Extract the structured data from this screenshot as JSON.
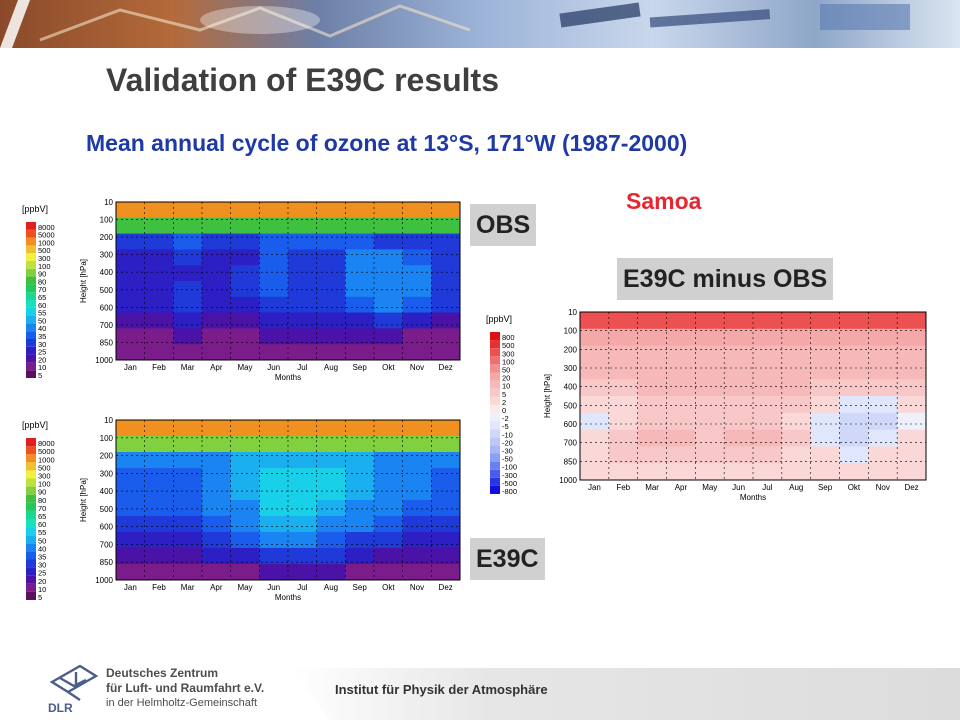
{
  "slide": {
    "title": "Validation of E39C results",
    "subtitle": "Mean annual cycle of ozone at 13°S, 171°W (1987-2000)",
    "station": "Samoa",
    "institute": "Institut für Physik der Atmosphäre",
    "logo": {
      "abbr": "DLR",
      "line1": "Deutsches Zentrum",
      "line2": "für Luft- und Raumfahrt e.V.",
      "line3": "in der Helmholtz-Gemeinschaft"
    }
  },
  "chart_data": [
    {
      "type": "heatmap",
      "panel_label": "OBS",
      "unit_label": "[ppbV]",
      "xlabel": "Months",
      "ylabel": "Height [hPa]",
      "x": [
        "Jan",
        "Feb",
        "Mar",
        "Apr",
        "May",
        "Jun",
        "Jul",
        "Aug",
        "Sep",
        "Okt",
        "Nov",
        "Dez"
      ],
      "y_ticks": [
        10,
        100,
        200,
        300,
        400,
        500,
        600,
        700,
        850,
        1000
      ],
      "levels": [
        5,
        10,
        20,
        25,
        30,
        35,
        40,
        50,
        55,
        60,
        65,
        70,
        80,
        90,
        100,
        300,
        500,
        1000,
        5000,
        8000
      ],
      "colors": [
        "#5a0e5e",
        "#7a1d8a",
        "#4a12a6",
        "#2c1fc4",
        "#1f3ad8",
        "#1a5cec",
        "#1a85f2",
        "#1ab0f0",
        "#18d0e8",
        "#1ae0c0",
        "#1ad890",
        "#20c860",
        "#40c040",
        "#80d040",
        "#c0e040",
        "#f0f040",
        "#f0c030",
        "#f09020",
        "#f05020",
        "#e02020"
      ],
      "z_approx": [
        [
          1000,
          1000,
          1000,
          1000,
          1000,
          1000,
          1000,
          1000,
          1000,
          1000,
          1000,
          1000
        ],
        [
          80,
          80,
          80,
          80,
          80,
          80,
          80,
          80,
          80,
          80,
          80,
          80
        ],
        [
          30,
          30,
          35,
          30,
          30,
          35,
          35,
          35,
          35,
          30,
          30,
          30
        ],
        [
          25,
          25,
          30,
          25,
          25,
          35,
          30,
          30,
          40,
          40,
          35,
          30
        ],
        [
          25,
          25,
          25,
          25,
          30,
          35,
          30,
          30,
          40,
          45,
          40,
          30
        ],
        [
          25,
          25,
          30,
          25,
          30,
          35,
          30,
          30,
          40,
          45,
          40,
          30
        ],
        [
          25,
          25,
          30,
          25,
          25,
          30,
          30,
          30,
          35,
          40,
          35,
          30
        ],
        [
          20,
          20,
          25,
          20,
          20,
          25,
          25,
          25,
          25,
          30,
          25,
          20
        ],
        [
          15,
          15,
          20,
          15,
          15,
          20,
          20,
          20,
          20,
          20,
          15,
          15
        ],
        [
          10,
          10,
          15,
          10,
          10,
          15,
          15,
          15,
          15,
          15,
          10,
          10
        ]
      ]
    },
    {
      "type": "heatmap",
      "panel_label": "E39C",
      "unit_label": "[ppbV]",
      "xlabel": "Months",
      "ylabel": "Height [hPa]",
      "x": [
        "Jan",
        "Feb",
        "Mar",
        "Apr",
        "May",
        "Jun",
        "Jul",
        "Aug",
        "Sep",
        "Okt",
        "Nov",
        "Dez"
      ],
      "y_ticks": [
        10,
        100,
        200,
        300,
        400,
        500,
        600,
        700,
        850,
        1000
      ],
      "levels": [
        5,
        10,
        20,
        25,
        30,
        35,
        40,
        50,
        55,
        60,
        65,
        70,
        80,
        90,
        100,
        300,
        500,
        1000,
        5000,
        8000
      ],
      "colors": [
        "#5a0e5e",
        "#7a1d8a",
        "#4a12a6",
        "#2c1fc4",
        "#1f3ad8",
        "#1a5cec",
        "#1a85f2",
        "#1ab0f0",
        "#18d0e8",
        "#1ae0c0",
        "#1ad890",
        "#20c860",
        "#40c040",
        "#80d040",
        "#c0e040",
        "#f0f040",
        "#f0c030",
        "#f09020",
        "#f05020",
        "#e02020"
      ],
      "z_approx": [
        [
          1000,
          1000,
          1000,
          1000,
          1000,
          1000,
          1000,
          1000,
          1000,
          1000,
          1000,
          1000
        ],
        [
          90,
          90,
          90,
          90,
          90,
          90,
          90,
          90,
          90,
          90,
          90,
          90
        ],
        [
          40,
          40,
          40,
          40,
          50,
          50,
          50,
          50,
          50,
          45,
          40,
          40
        ],
        [
          35,
          35,
          35,
          40,
          50,
          55,
          55,
          55,
          50,
          45,
          40,
          35
        ],
        [
          35,
          35,
          35,
          40,
          50,
          55,
          55,
          55,
          50,
          45,
          40,
          35
        ],
        [
          35,
          35,
          35,
          40,
          45,
          55,
          55,
          50,
          45,
          40,
          35,
          35
        ],
        [
          30,
          30,
          30,
          35,
          40,
          50,
          50,
          45,
          40,
          35,
          30,
          30
        ],
        [
          25,
          25,
          25,
          30,
          35,
          40,
          40,
          35,
          30,
          30,
          25,
          25
        ],
        [
          20,
          20,
          20,
          25,
          25,
          30,
          30,
          30,
          25,
          20,
          20,
          20
        ],
        [
          10,
          10,
          10,
          15,
          15,
          20,
          20,
          20,
          15,
          15,
          10,
          10
        ]
      ]
    },
    {
      "type": "heatmap",
      "panel_label": "E39C minus OBS",
      "unit_label": "[ppbV]",
      "xlabel": "Months",
      "ylabel": "Height [hPa]",
      "x": [
        "Jan",
        "Feb",
        "Mar",
        "Apr",
        "May",
        "Jun",
        "Jul",
        "Aug",
        "Sep",
        "Okt",
        "Nov",
        "Dez"
      ],
      "y_ticks": [
        10,
        100,
        200,
        300,
        400,
        500,
        600,
        700,
        850,
        1000
      ],
      "levels": [
        -800,
        -500,
        -300,
        -100,
        -50,
        -30,
        -20,
        -10,
        -5,
        -2,
        0,
        2,
        5,
        10,
        20,
        50,
        100,
        300,
        500,
        800
      ],
      "colors": [
        "#1010e0",
        "#2a36e6",
        "#4a5cec",
        "#6a80f0",
        "#8aa0f4",
        "#a8b8f6",
        "#bcc8f8",
        "#d0d8fa",
        "#e0e6fb",
        "#eef0fc",
        "#fceaea",
        "#fad8d8",
        "#f8c8c8",
        "#f6b8b8",
        "#f4a8a8",
        "#f29090",
        "#f07070",
        "#ec5050",
        "#e83030",
        "#e01010"
      ],
      "z_approx": [
        [
          300,
          300,
          300,
          300,
          300,
          300,
          300,
          300,
          300,
          300,
          300,
          300
        ],
        [
          20,
          20,
          20,
          20,
          20,
          20,
          20,
          20,
          20,
          20,
          20,
          20
        ],
        [
          10,
          10,
          10,
          10,
          10,
          10,
          10,
          10,
          10,
          10,
          10,
          10
        ],
        [
          10,
          10,
          10,
          10,
          10,
          10,
          10,
          10,
          10,
          10,
          10,
          10
        ],
        [
          5,
          5,
          10,
          10,
          10,
          10,
          10,
          10,
          5,
          5,
          5,
          5
        ],
        [
          2,
          2,
          5,
          5,
          5,
          5,
          5,
          5,
          2,
          -5,
          -5,
          2
        ],
        [
          -5,
          2,
          5,
          5,
          5,
          5,
          5,
          2,
          -5,
          -10,
          -10,
          -2
        ],
        [
          2,
          5,
          10,
          10,
          5,
          10,
          10,
          5,
          -5,
          -10,
          -5,
          2
        ],
        [
          2,
          5,
          5,
          5,
          5,
          5,
          5,
          2,
          2,
          -5,
          2,
          2
        ],
        [
          2,
          2,
          2,
          2,
          2,
          2,
          2,
          2,
          2,
          2,
          2,
          2
        ]
      ]
    }
  ]
}
